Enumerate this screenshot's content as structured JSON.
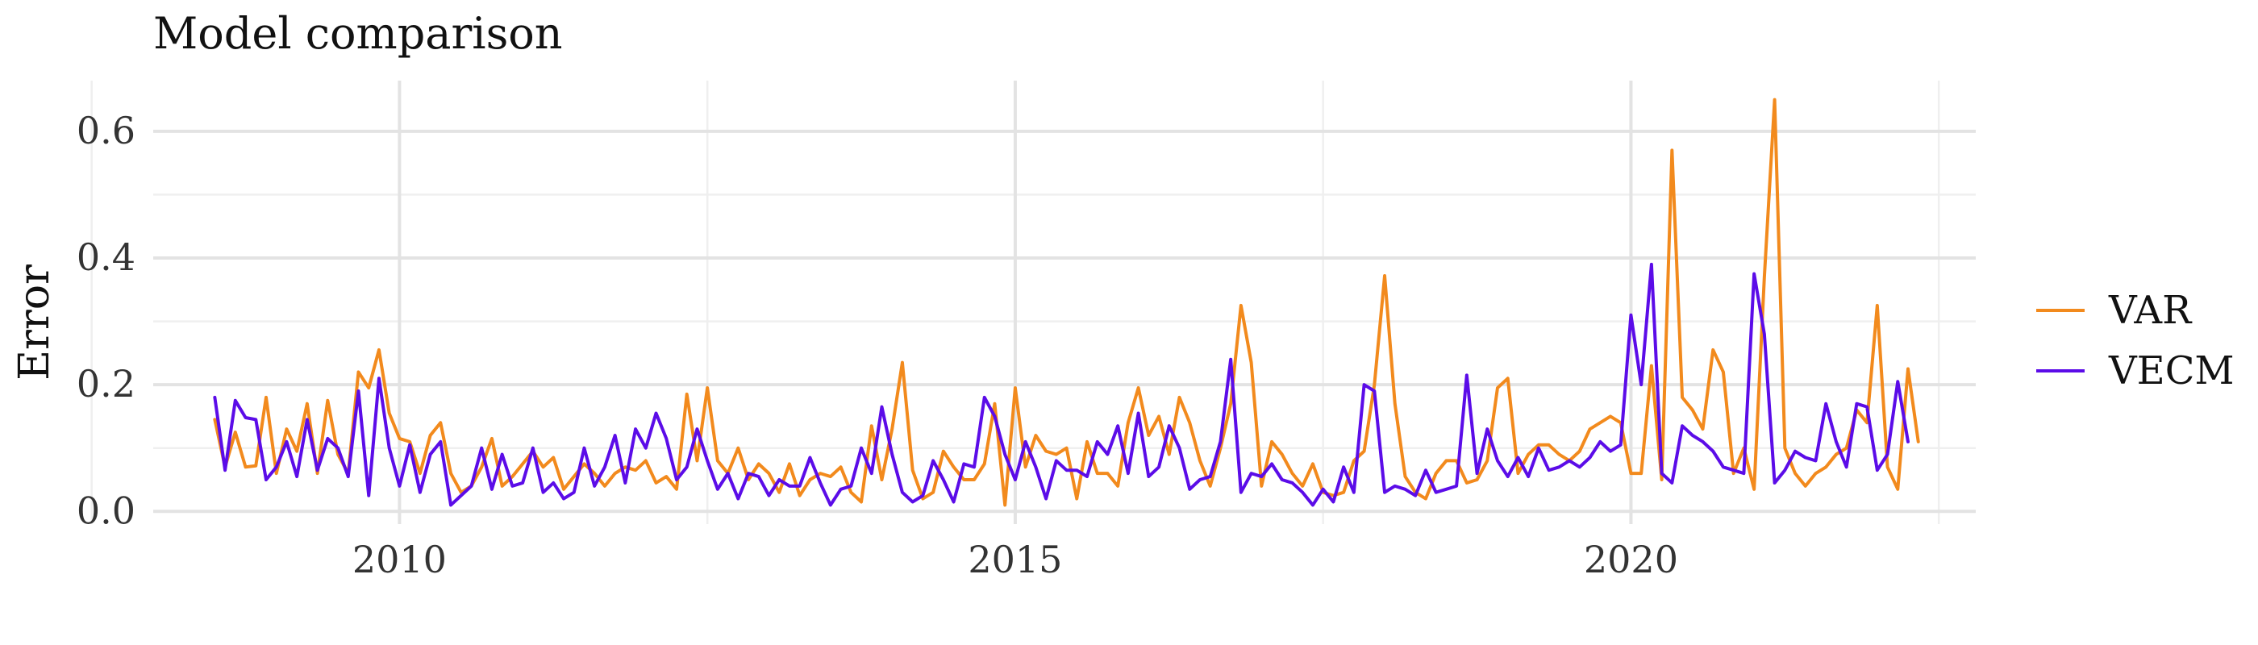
{
  "chart_data": {
    "type": "line",
    "title": "Model comparison",
    "xlabel": "",
    "ylabel": "Error",
    "x_start": "2008-07",
    "frequency": "monthly",
    "xlim": [
      2008.0,
      2022.8
    ],
    "ylim": [
      -0.02,
      0.68
    ],
    "x_ticks": [
      2010,
      2015,
      2020
    ],
    "x_minor_ticks": [
      2007.5,
      2012.5,
      2017.5,
      2022.5
    ],
    "y_ticks": [
      0.0,
      0.2,
      0.4,
      0.6
    ],
    "y_tick_labels": [
      "0.0",
      "0.2",
      "0.4",
      "0.6"
    ],
    "y_minor_ticks": [
      0.1,
      0.3,
      0.5
    ],
    "grid": true,
    "legend_position": "right",
    "series": [
      {
        "name": "VAR",
        "color": "#F28A1D",
        "values": [
          0.145,
          0.07,
          0.125,
          0.07,
          0.072,
          0.18,
          0.06,
          0.13,
          0.095,
          0.17,
          0.06,
          0.175,
          0.09,
          0.06,
          0.22,
          0.195,
          0.255,
          0.155,
          0.115,
          0.11,
          0.06,
          0.12,
          0.14,
          0.06,
          0.03,
          0.04,
          0.07,
          0.115,
          0.04,
          0.055,
          0.075,
          0.095,
          0.07,
          0.085,
          0.035,
          0.055,
          0.075,
          0.06,
          0.04,
          0.06,
          0.07,
          0.065,
          0.08,
          0.045,
          0.055,
          0.035,
          0.185,
          0.08,
          0.195,
          0.08,
          0.06,
          0.1,
          0.05,
          0.075,
          0.06,
          0.03,
          0.075,
          0.025,
          0.05,
          0.06,
          0.055,
          0.07,
          0.03,
          0.015,
          0.135,
          0.05,
          0.13,
          0.235,
          0.065,
          0.02,
          0.03,
          0.095,
          0.07,
          0.05,
          0.05,
          0.075,
          0.17,
          0.01,
          0.195,
          0.07,
          0.12,
          0.095,
          0.09,
          0.1,
          0.02,
          0.11,
          0.06,
          0.06,
          0.04,
          0.14,
          0.195,
          0.12,
          0.15,
          0.09,
          0.18,
          0.14,
          0.08,
          0.04,
          0.1,
          0.17,
          0.325,
          0.235,
          0.04,
          0.11,
          0.09,
          0.06,
          0.04,
          0.075,
          0.03,
          0.025,
          0.03,
          0.08,
          0.095,
          0.2,
          0.372,
          0.17,
          0.055,
          0.03,
          0.02,
          0.06,
          0.08,
          0.08,
          0.045,
          0.05,
          0.08,
          0.195,
          0.21,
          0.06,
          0.09,
          0.105,
          0.105,
          0.09,
          0.08,
          0.095,
          0.13,
          0.14,
          0.15,
          0.14,
          0.06,
          0.06,
          0.23,
          0.05,
          0.57,
          0.18,
          0.16,
          0.13,
          0.255,
          0.22,
          0.06,
          0.1,
          0.035,
          0.37,
          0.65,
          0.1,
          0.06,
          0.04,
          0.06,
          0.07,
          0.09,
          0.1,
          0.16,
          0.14,
          0.325,
          0.07,
          0.035,
          0.225,
          0.11
        ]
      },
      {
        "name": "VECM",
        "color": "#5B0CE8",
        "values": [
          0.18,
          0.065,
          0.175,
          0.148,
          0.145,
          0.05,
          0.07,
          0.11,
          0.055,
          0.145,
          0.065,
          0.115,
          0.1,
          0.055,
          0.19,
          0.025,
          0.21,
          0.1,
          0.04,
          0.105,
          0.03,
          0.09,
          0.11,
          0.01,
          0.025,
          0.04,
          0.1,
          0.035,
          0.09,
          0.04,
          0.045,
          0.1,
          0.03,
          0.045,
          0.02,
          0.03,
          0.1,
          0.04,
          0.07,
          0.12,
          0.045,
          0.13,
          0.1,
          0.155,
          0.115,
          0.05,
          0.07,
          0.13,
          0.08,
          0.035,
          0.06,
          0.02,
          0.06,
          0.055,
          0.025,
          0.05,
          0.04,
          0.04,
          0.085,
          0.045,
          0.01,
          0.035,
          0.04,
          0.1,
          0.06,
          0.165,
          0.09,
          0.03,
          0.015,
          0.025,
          0.08,
          0.05,
          0.015,
          0.075,
          0.07,
          0.18,
          0.15,
          0.09,
          0.05,
          0.11,
          0.07,
          0.02,
          0.08,
          0.065,
          0.065,
          0.055,
          0.11,
          0.09,
          0.135,
          0.06,
          0.155,
          0.055,
          0.07,
          0.135,
          0.1,
          0.035,
          0.05,
          0.055,
          0.11,
          0.24,
          0.03,
          0.06,
          0.055,
          0.075,
          0.05,
          0.045,
          0.03,
          0.01,
          0.035,
          0.015,
          0.07,
          0.03,
          0.2,
          0.19,
          0.03,
          0.04,
          0.035,
          0.025,
          0.065,
          0.03,
          0.035,
          0.04,
          0.215,
          0.06,
          0.13,
          0.08,
          0.055,
          0.085,
          0.055,
          0.1,
          0.065,
          0.07,
          0.08,
          0.07,
          0.085,
          0.11,
          0.095,
          0.105,
          0.31,
          0.2,
          0.39,
          0.06,
          0.045,
          0.135,
          0.12,
          0.11,
          0.095,
          0.07,
          0.065,
          0.06,
          0.375,
          0.28,
          0.045,
          0.065,
          0.095,
          0.085,
          0.08,
          0.17,
          0.11,
          0.07,
          0.17,
          0.165,
          0.065,
          0.09,
          0.205,
          0.11
        ]
      }
    ]
  }
}
